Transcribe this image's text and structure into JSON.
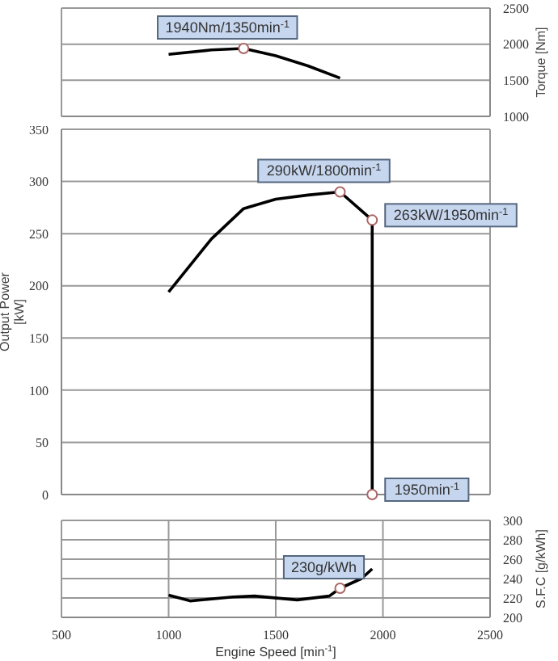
{
  "chart_data": [
    {
      "type": "line",
      "x": [
        1000,
        1200,
        1350,
        1500,
        1650,
        1800
      ],
      "series": [
        {
          "color": "#000000",
          "values": [
            1860,
            1920,
            1940,
            1840,
            1700,
            1530
          ]
        }
      ],
      "xlim": [
        500,
        2500
      ],
      "xticks": [
        500,
        1000,
        1500,
        2000,
        2500
      ],
      "ylim": [
        1000,
        2500
      ],
      "yticks": [
        1000,
        1500,
        2000,
        2500
      ],
      "ylabel": "Torque [Nm]",
      "tick_labels": "y",
      "grid": true,
      "marker": "none",
      "line_style": "solid",
      "annotations": [
        {
          "text": "1940Nm/1350min$^{-1}$",
          "x": 1350,
          "y": 1940
        }
      ]
    },
    {
      "type": "line",
      "x": [
        1000,
        1200,
        1350,
        1500,
        1650,
        1800,
        1950,
        1950
      ],
      "series": [
        {
          "color": "#000000",
          "values": [
            194,
            245,
            274,
            283,
            287,
            290,
            263,
            0
          ]
        }
      ],
      "xlim": [
        500,
        2500
      ],
      "xticks": [
        500,
        1000,
        1500,
        2000,
        2500
      ],
      "ylim": [
        0,
        350
      ],
      "yticks": [
        0,
        50,
        100,
        150,
        200,
        250,
        300,
        350
      ],
      "ylabel": "Output Power\n[kW]",
      "tick_labels": "y",
      "grid": true,
      "marker": "none",
      "line_style": "solid",
      "annotations": [
        {
          "text": "290kW/1800min$^{-1}$",
          "x": 1800,
          "y": 290
        },
        {
          "text": "263kW/1950min$^{-1}$",
          "x": 1950,
          "y": 263
        },
        {
          "text": "1950min$^{-1}$",
          "x": 1950,
          "y": 0
        }
      ]
    },
    {
      "type": "line",
      "x": [
        1000,
        1100,
        1300,
        1400,
        1600,
        1750,
        1800,
        1900,
        1950
      ],
      "series": [
        {
          "color": "#000000",
          "values": [
            223,
            217,
            221,
            222,
            218,
            222,
            230,
            240,
            250
          ]
        }
      ],
      "xlim": [
        500,
        2500
      ],
      "xticks": [
        500,
        1000,
        1500,
        2000,
        2500
      ],
      "xlabel": "Engine Speed [min$^{-1}$]",
      "ylim": [
        200,
        300
      ],
      "yticks": [
        200,
        220,
        240,
        260,
        280,
        300
      ],
      "ylabel": "S.F.C [g/kWh]",
      "grid": true,
      "marker": "none",
      "line_style": "solid",
      "annotations": [
        {
          "text": "230g/kWh",
          "x": 1800,
          "y": 230
        }
      ]
    }
  ]
}
